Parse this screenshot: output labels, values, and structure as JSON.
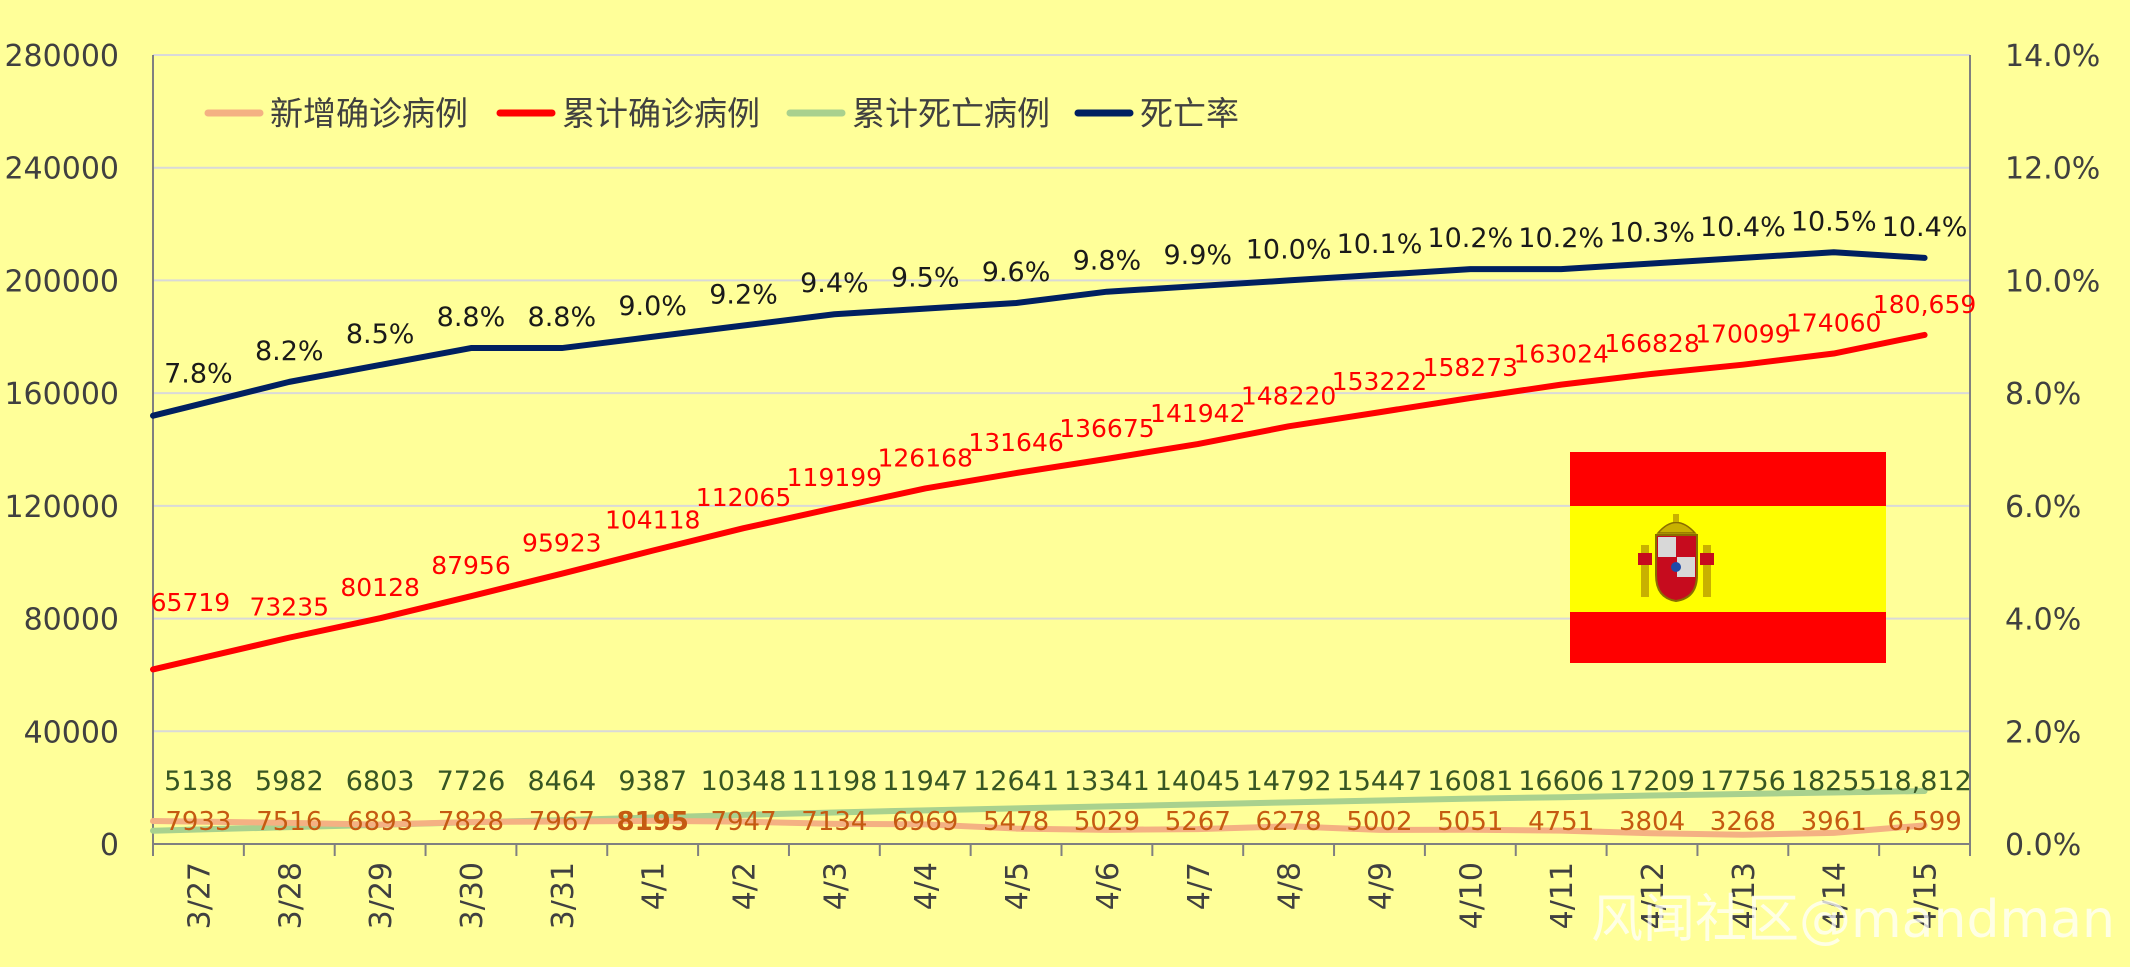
{
  "chart_data": {
    "type": "line",
    "categories": [
      "3/27",
      "3/28",
      "3/29",
      "3/30",
      "3/31",
      "4/1",
      "4/2",
      "4/3",
      "4/4",
      "4/5",
      "4/6",
      "4/7",
      "4/8",
      "4/9",
      "4/10",
      "4/11",
      "4/12",
      "4/13",
      "4/14",
      "4/15"
    ],
    "y_left": {
      "range": [
        0,
        280000
      ],
      "ticks": [
        "0",
        "40000",
        "80000",
        "120000",
        "160000",
        "200000",
        "240000",
        "280000"
      ]
    },
    "y_right": {
      "range": [
        0,
        0.14
      ],
      "ticks": [
        "0.0%",
        "2.0%",
        "4.0%",
        "6.0%",
        "8.0%",
        "10.0%",
        "12.0%",
        "14.0%"
      ]
    },
    "grid": true,
    "legend_position": "top-left",
    "series": [
      {
        "name": "新增确诊病例",
        "axis": "left",
        "color": "#f4b183",
        "label_color": "#c55a11",
        "values": [
          7933,
          7516,
          6893,
          7828,
          7967,
          8195,
          7947,
          7134,
          6969,
          5478,
          5029,
          5267,
          6278,
          5002,
          5051,
          4751,
          3804,
          3268,
          3961,
          6599
        ],
        "labels": [
          "7933",
          "7516",
          "6893",
          "7828",
          "7967",
          "8195",
          "7947",
          "7134",
          "6969",
          "5478",
          "5029",
          "5267",
          "6278",
          "5002",
          "5051",
          "4751",
          "3804",
          "3268",
          "3961",
          "6,599"
        ]
      },
      {
        "name": "累计确诊病例",
        "axis": "left",
        "color": "#ff0000",
        "label_color": "#ff0000",
        "values": [
          65719,
          73235,
          80128,
          87956,
          95923,
          104118,
          112065,
          119199,
          126168,
          131646,
          136675,
          141942,
          148220,
          153222,
          158273,
          163024,
          166828,
          170099,
          174060,
          180659
        ],
        "labels": [
          "65719",
          "73235",
          "80128",
          "87956",
          "95923",
          "104118",
          "112065",
          "119199",
          "126168",
          "131646",
          "136675",
          "141942",
          "148220",
          "153222",
          "158273",
          "163024",
          "166828",
          "170099",
          "174060",
          "180,659"
        ]
      },
      {
        "name": "累计死亡病例",
        "axis": "left",
        "color": "#a9d18e",
        "label_color": "#375623",
        "values": [
          5138,
          5982,
          6803,
          7726,
          8464,
          9387,
          10348,
          11198,
          11947,
          12641,
          13341,
          14045,
          14792,
          15447,
          16081,
          16606,
          17209,
          17756,
          18255,
          18812
        ],
        "labels": [
          "5138",
          "5982",
          "6803",
          "7726",
          "8464",
          "9387",
          "10348",
          "11198",
          "11947",
          "12641",
          "13341",
          "14045",
          "14792",
          "15447",
          "16081",
          "16606",
          "17209",
          "17756",
          "18255",
          "18,812"
        ]
      },
      {
        "name": "死亡率",
        "axis": "right",
        "color": "#002060",
        "label_color": "#1a1a1a",
        "values": [
          0.078,
          0.082,
          0.085,
          0.088,
          0.088,
          0.09,
          0.092,
          0.094,
          0.095,
          0.096,
          0.098,
          0.099,
          0.1,
          0.101,
          0.102,
          0.102,
          0.103,
          0.104,
          0.105,
          0.104
        ],
        "labels": [
          "7.8%",
          "8.2%",
          "8.5%",
          "8.8%",
          "8.8%",
          "9.0%",
          "9.2%",
          "9.4%",
          "9.5%",
          "9.6%",
          "9.8%",
          "9.9%",
          "10.0%",
          "10.1%",
          "10.2%",
          "10.2%",
          "10.3%",
          "10.4%",
          "10.5%",
          "10.4%"
        ]
      }
    ]
  },
  "flag": {
    "name": "spain-flag",
    "red": "#ff0000",
    "yellow": "#ffff00"
  },
  "watermark": "风闻社区@mandman",
  "colors": {
    "background": "#ffff99",
    "grid": "#d9d9d9",
    "axis_text": "#404040"
  }
}
